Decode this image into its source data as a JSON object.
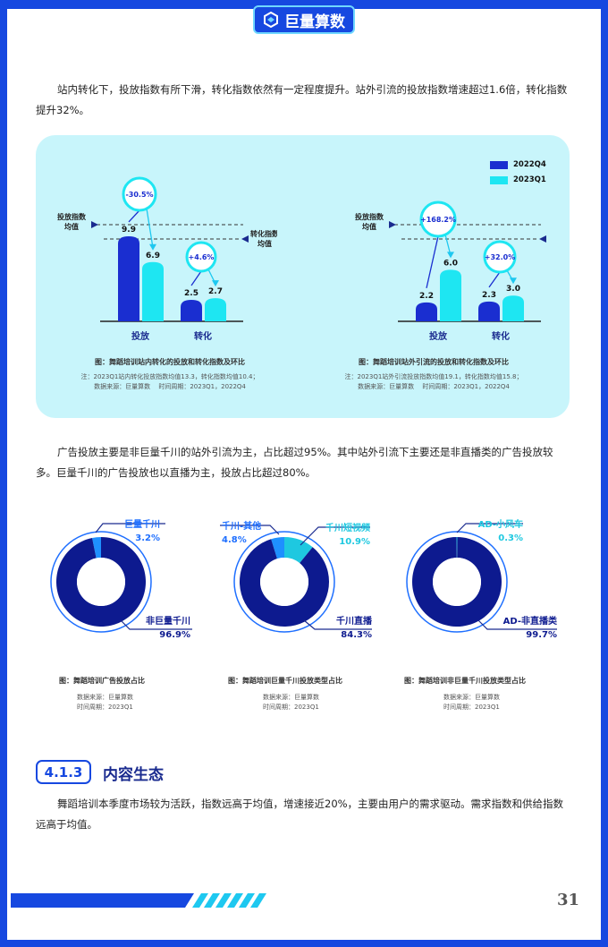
{
  "header": {
    "logo_text": "巨量算数"
  },
  "paragraphs": {
    "p1": "站内转化下，投放指数有所下滑，转化指数依然有一定程度提升。站外引流的投放指数增速超过1.6倍，转化指数提升32%。",
    "p2": "广告投放主要是非巨量千川的站外引流为主，占比超过95%。其中站外引流下主要还是非直播类的广告投放较多。巨量千川的广告投放也以直播为主，投放占比超过80%。",
    "p3": "舞蹈培训本季度市场较为活跃，指数远高于均值，增速接近20%，主要由用户的需求驱动。需求指数和供给指数远高于均值。"
  },
  "colors": {
    "q4": "#1a2ed0",
    "q1": "#1ee6f2",
    "brand": "#1648e0",
    "panel": "#c8f5fb",
    "navy": "#1a2b8f"
  },
  "legend": [
    {
      "label": "2022Q4",
      "color": "#1a2ed0"
    },
    {
      "label": "2023Q1",
      "color": "#1ee6f2"
    }
  ],
  "chart_data": [
    {
      "type": "bar",
      "categories": [
        "投放",
        "转化"
      ],
      "series": [
        {
          "name": "2022Q4",
          "values": [
            9.9,
            2.5
          ]
        },
        {
          "name": "2023Q1",
          "values": [
            6.9,
            2.7
          ]
        }
      ],
      "changes": [
        "-30.5%",
        "+4.6%"
      ],
      "value_labels": [
        [
          "9.9",
          "6.9"
        ],
        [
          "2.5",
          "2.7"
        ]
      ],
      "avg_left_label": [
        "投放指数",
        "均值"
      ],
      "avg_right_label": [
        "转化指数",
        "均值"
      ],
      "avg_values": {
        "投放": 13.3,
        "转化": 10.4
      },
      "caption": "图：舞蹈培训站内转化的投放和转化指数及环比",
      "notes": [
        "注：2023Q1站内转化投放指数均值13.3，转化指数均值10.4；",
        "数据来源：巨量算数　 时间周期：2023Q1，2022Q4"
      ]
    },
    {
      "type": "bar",
      "categories": [
        "投放",
        "转化"
      ],
      "series": [
        {
          "name": "2022Q4",
          "values": [
            2.2,
            2.3
          ]
        },
        {
          "name": "2023Q1",
          "values": [
            6.0,
            3.0
          ]
        }
      ],
      "changes": [
        "+168.2%",
        "+32.0%"
      ],
      "value_labels": [
        [
          "2.2",
          "6.0"
        ],
        [
          "2.3",
          "3.0"
        ]
      ],
      "avg_left_label": [
        "投放指数",
        "均值"
      ],
      "avg_right_label": [
        "转化指数",
        "均值"
      ],
      "avg_values": {
        "投放": 19.1,
        "转化": 15.8
      },
      "caption": "图：舞蹈培训站外引流的投放和转化指数及环比",
      "notes": [
        "注：2023Q1站外引流投放指数均值19.1，转化指数均值15.8；",
        "数据来源：巨量算数　 时间周期：2023Q1，2022Q4"
      ]
    },
    {
      "type": "pie",
      "slices": [
        {
          "label": "巨量千川",
          "pct": 3.2,
          "value_label": "3.2%",
          "color": "#1e90ff"
        },
        {
          "label": "非巨量千川",
          "pct": 96.9,
          "value_label": "96.9%",
          "color": "#0d1a8f"
        }
      ],
      "caption": "图：舞蹈培训广告投放占比",
      "notes": [
        "数据来源：巨量算数",
        "时间周期：2023Q1"
      ]
    },
    {
      "type": "pie",
      "slices": [
        {
          "label": "千川-其他",
          "pct": 4.8,
          "value_label": "4.8%",
          "color": "#1e90ff"
        },
        {
          "label": "千川短视频",
          "pct": 10.9,
          "value_label": "10.9%",
          "color": "#1ec8e0"
        },
        {
          "label": "千川直播",
          "pct": 84.3,
          "value_label": "84.3%",
          "color": "#0d1a8f"
        }
      ],
      "caption": "图：舞蹈培训巨量千川投放类型占比",
      "notes": [
        "数据来源：巨量算数",
        "时间周期：2023Q1"
      ]
    },
    {
      "type": "pie",
      "slices": [
        {
          "label": "AD-小风车",
          "pct": 0.3,
          "value_label": "0.3%",
          "color": "#1ec8e0"
        },
        {
          "label": "AD-非直播类",
          "pct": 99.7,
          "value_label": "99.7%",
          "color": "#0d1a8f"
        }
      ],
      "caption": "图：舞蹈培训非巨量千川投放类型占比",
      "notes": [
        "数据来源：巨量算数",
        "时间周期：2023Q1"
      ]
    }
  ],
  "section": {
    "number": "4.1.3",
    "title": "内容生态"
  },
  "footer": {
    "page_number": "31"
  }
}
